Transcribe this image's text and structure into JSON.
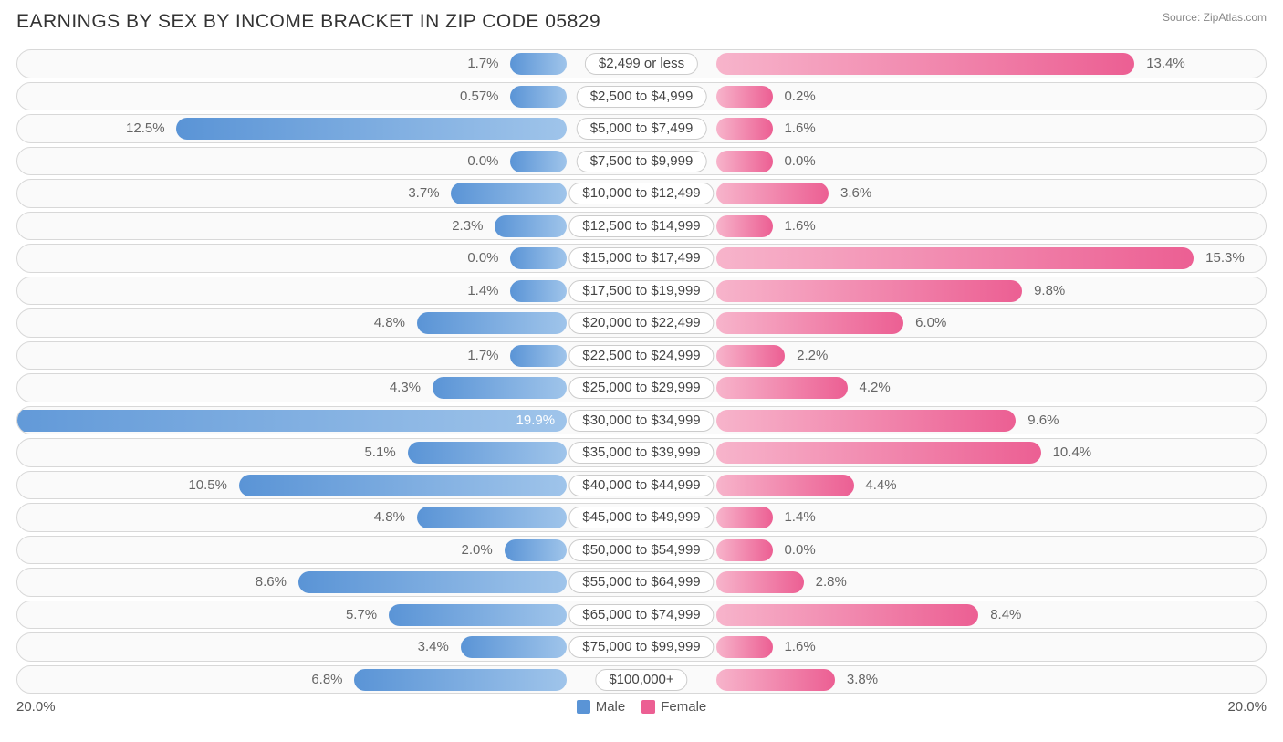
{
  "title": "EARNINGS BY SEX BY INCOME BRACKET IN ZIP CODE 05829",
  "source": "Source: ZipAtlas.com",
  "axis_max_label": "20.0%",
  "legend": {
    "male_label": "Male",
    "female_label": "Female"
  },
  "chart": {
    "type": "diverging-bar",
    "axis_max": 20.0,
    "male_gradient": [
      "#9fc4ea",
      "#5a94d6"
    ],
    "female_gradient": [
      "#f7b4cb",
      "#ec5f93"
    ],
    "row_border_color": "#d8d8d8",
    "row_bg": "#fafafa",
    "background_color": "#ffffff",
    "text_color": "#666666",
    "title_color": "#333333",
    "title_fontsize": 21,
    "label_fontsize": 15,
    "categories": [
      {
        "label": "$2,499 or less",
        "male": 1.7,
        "female": 13.4,
        "male_label": "1.7%",
        "female_label": "13.4%"
      },
      {
        "label": "$2,500 to $4,999",
        "male": 0.57,
        "female": 0.2,
        "male_label": "0.57%",
        "female_label": "0.2%"
      },
      {
        "label": "$5,000 to $7,499",
        "male": 12.5,
        "female": 1.6,
        "male_label": "12.5%",
        "female_label": "1.6%"
      },
      {
        "label": "$7,500 to $9,999",
        "male": 0.0,
        "female": 0.0,
        "male_label": "0.0%",
        "female_label": "0.0%"
      },
      {
        "label": "$10,000 to $12,499",
        "male": 3.7,
        "female": 3.6,
        "male_label": "3.7%",
        "female_label": "3.6%"
      },
      {
        "label": "$12,500 to $14,999",
        "male": 2.3,
        "female": 1.6,
        "male_label": "2.3%",
        "female_label": "1.6%"
      },
      {
        "label": "$15,000 to $17,499",
        "male": 0.0,
        "female": 15.3,
        "male_label": "0.0%",
        "female_label": "15.3%"
      },
      {
        "label": "$17,500 to $19,999",
        "male": 1.4,
        "female": 9.8,
        "male_label": "1.4%",
        "female_label": "9.8%"
      },
      {
        "label": "$20,000 to $22,499",
        "male": 4.8,
        "female": 6.0,
        "male_label": "4.8%",
        "female_label": "6.0%"
      },
      {
        "label": "$22,500 to $24,999",
        "male": 1.7,
        "female": 2.2,
        "male_label": "1.7%",
        "female_label": "2.2%"
      },
      {
        "label": "$25,000 to $29,999",
        "male": 4.3,
        "female": 4.2,
        "male_label": "4.3%",
        "female_label": "4.2%"
      },
      {
        "label": "$30,000 to $34,999",
        "male": 19.9,
        "female": 9.6,
        "male_label": "19.9%",
        "female_label": "9.6%"
      },
      {
        "label": "$35,000 to $39,999",
        "male": 5.1,
        "female": 10.4,
        "male_label": "5.1%",
        "female_label": "10.4%"
      },
      {
        "label": "$40,000 to $44,999",
        "male": 10.5,
        "female": 4.4,
        "male_label": "10.5%",
        "female_label": "4.4%"
      },
      {
        "label": "$45,000 to $49,999",
        "male": 4.8,
        "female": 1.4,
        "male_label": "4.8%",
        "female_label": "1.4%"
      },
      {
        "label": "$50,000 to $54,999",
        "male": 2.0,
        "female": 0.0,
        "male_label": "2.0%",
        "female_label": "0.0%"
      },
      {
        "label": "$55,000 to $64,999",
        "male": 8.6,
        "female": 2.8,
        "male_label": "8.6%",
        "female_label": "2.8%"
      },
      {
        "label": "$65,000 to $74,999",
        "male": 5.7,
        "female": 8.4,
        "male_label": "5.7%",
        "female_label": "8.4%"
      },
      {
        "label": "$75,000 to $99,999",
        "male": 3.4,
        "female": 1.6,
        "male_label": "3.4%",
        "female_label": "1.6%"
      },
      {
        "label": "$100,000+",
        "male": 6.8,
        "female": 3.8,
        "male_label": "6.8%",
        "female_label": "3.8%"
      }
    ]
  }
}
